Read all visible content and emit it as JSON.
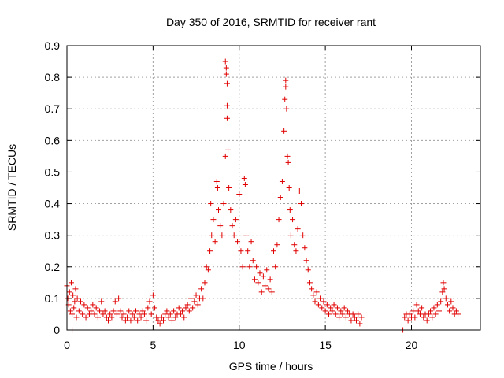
{
  "chart_data": {
    "type": "scatter",
    "title": "Day 350 of 2016, SRMTID for receiver rant",
    "xlabel": "GPS time / hours",
    "ylabel": "SRMTID / TECUs",
    "xlim": [
      0,
      24
    ],
    "ylim": [
      0,
      0.9
    ],
    "x_ticks": [
      0,
      5,
      10,
      15,
      20
    ],
    "x_tick_labels": [
      "0",
      "5",
      "10",
      "15",
      "20"
    ],
    "y_ticks": [
      0,
      0.1,
      0.2,
      0.3,
      0.4,
      0.5,
      0.6,
      0.7,
      0.8,
      0.9
    ],
    "y_tick_labels": [
      "0",
      "0.1",
      "0.2",
      "0.3",
      "0.4",
      "0.5",
      "0.6",
      "0.7",
      "0.8",
      "0.9"
    ],
    "grid": true,
    "marker": "+",
    "color": "#e00000",
    "series": [
      {
        "name": "SRMTID",
        "points": [
          [
            0.0,
            0.14
          ],
          [
            0.05,
            0.1
          ],
          [
            0.1,
            0.08
          ],
          [
            0.15,
            0.12
          ],
          [
            0.2,
            0.06
          ],
          [
            0.25,
            0.15
          ],
          [
            0.3,
            0.05
          ],
          [
            0.3,
            0.0
          ],
          [
            0.35,
            0.11
          ],
          [
            0.4,
            0.07
          ],
          [
            0.45,
            0.09
          ],
          [
            0.5,
            0.13
          ],
          [
            0.55,
            0.04
          ],
          [
            0.6,
            0.1
          ],
          [
            0.7,
            0.06
          ],
          [
            0.8,
            0.09
          ],
          [
            0.9,
            0.05
          ],
          [
            1.0,
            0.08
          ],
          [
            1.1,
            0.04
          ],
          [
            1.2,
            0.07
          ],
          [
            1.3,
            0.05
          ],
          [
            1.4,
            0.06
          ],
          [
            1.5,
            0.08
          ],
          [
            1.6,
            0.05
          ],
          [
            1.7,
            0.07
          ],
          [
            1.8,
            0.04
          ],
          [
            1.9,
            0.06
          ],
          [
            2.0,
            0.09
          ],
          [
            2.1,
            0.05
          ],
          [
            2.2,
            0.06
          ],
          [
            2.3,
            0.04
          ],
          [
            2.4,
            0.03
          ],
          [
            2.5,
            0.05
          ],
          [
            2.6,
            0.04
          ],
          [
            2.7,
            0.06
          ],
          [
            2.8,
            0.09
          ],
          [
            2.9,
            0.05
          ],
          [
            3.0,
            0.1
          ],
          [
            3.1,
            0.06
          ],
          [
            3.2,
            0.04
          ],
          [
            3.3,
            0.05
          ],
          [
            3.4,
            0.03
          ],
          [
            3.5,
            0.04
          ],
          [
            3.6,
            0.06
          ],
          [
            3.7,
            0.03
          ],
          [
            3.8,
            0.05
          ],
          [
            3.9,
            0.04
          ],
          [
            4.0,
            0.06
          ],
          [
            4.1,
            0.03
          ],
          [
            4.2,
            0.05
          ],
          [
            4.3,
            0.04
          ],
          [
            4.4,
            0.06
          ],
          [
            4.5,
            0.05
          ],
          [
            4.6,
            0.03
          ],
          [
            4.7,
            0.07
          ],
          [
            4.8,
            0.09
          ],
          [
            4.9,
            0.05
          ],
          [
            5.0,
            0.11
          ],
          [
            5.1,
            0.07
          ],
          [
            5.2,
            0.04
          ],
          [
            5.3,
            0.03
          ],
          [
            5.4,
            0.02
          ],
          [
            5.5,
            0.04
          ],
          [
            5.6,
            0.03
          ],
          [
            5.7,
            0.05
          ],
          [
            5.8,
            0.06
          ],
          [
            5.9,
            0.04
          ],
          [
            6.0,
            0.05
          ],
          [
            6.1,
            0.03
          ],
          [
            6.2,
            0.06
          ],
          [
            6.3,
            0.04
          ],
          [
            6.4,
            0.05
          ],
          [
            6.5,
            0.07
          ],
          [
            6.6,
            0.05
          ],
          [
            6.7,
            0.06
          ],
          [
            6.8,
            0.04
          ],
          [
            6.9,
            0.07
          ],
          [
            7.0,
            0.08
          ],
          [
            7.1,
            0.06
          ],
          [
            7.2,
            0.1
          ],
          [
            7.3,
            0.07
          ],
          [
            7.4,
            0.09
          ],
          [
            7.5,
            0.11
          ],
          [
            7.6,
            0.08
          ],
          [
            7.7,
            0.1
          ],
          [
            7.8,
            0.13
          ],
          [
            7.9,
            0.1
          ],
          [
            8.0,
            0.15
          ],
          [
            8.1,
            0.2
          ],
          [
            8.2,
            0.19
          ],
          [
            8.3,
            0.25
          ],
          [
            8.35,
            0.4
          ],
          [
            8.4,
            0.3
          ],
          [
            8.5,
            0.35
          ],
          [
            8.6,
            0.28
          ],
          [
            8.7,
            0.47
          ],
          [
            8.75,
            0.45
          ],
          [
            8.8,
            0.38
          ],
          [
            8.9,
            0.33
          ],
          [
            9.0,
            0.3
          ],
          [
            9.1,
            0.4
          ],
          [
            9.2,
            0.55
          ],
          [
            9.2,
            0.85
          ],
          [
            9.25,
            0.83
          ],
          [
            9.25,
            0.81
          ],
          [
            9.3,
            0.78
          ],
          [
            9.3,
            0.71
          ],
          [
            9.3,
            0.67
          ],
          [
            9.35,
            0.57
          ],
          [
            9.4,
            0.45
          ],
          [
            9.5,
            0.38
          ],
          [
            9.6,
            0.33
          ],
          [
            9.7,
            0.3
          ],
          [
            9.8,
            0.35
          ],
          [
            9.9,
            0.28
          ],
          [
            10.0,
            0.43
          ],
          [
            10.1,
            0.25
          ],
          [
            10.2,
            0.2
          ],
          [
            10.3,
            0.48
          ],
          [
            10.35,
            0.46
          ],
          [
            10.4,
            0.3
          ],
          [
            10.5,
            0.25
          ],
          [
            10.6,
            0.2
          ],
          [
            10.7,
            0.28
          ],
          [
            10.8,
            0.22
          ],
          [
            10.9,
            0.16
          ],
          [
            11.0,
            0.2
          ],
          [
            11.1,
            0.15
          ],
          [
            11.2,
            0.18
          ],
          [
            11.3,
            0.12
          ],
          [
            11.4,
            0.17
          ],
          [
            11.5,
            0.14
          ],
          [
            11.6,
            0.19
          ],
          [
            11.7,
            0.13
          ],
          [
            11.8,
            0.16
          ],
          [
            11.9,
            0.12
          ],
          [
            12.0,
            0.25
          ],
          [
            12.1,
            0.2
          ],
          [
            12.2,
            0.27
          ],
          [
            12.3,
            0.35
          ],
          [
            12.4,
            0.42
          ],
          [
            12.5,
            0.47
          ],
          [
            12.6,
            0.63
          ],
          [
            12.65,
            0.73
          ],
          [
            12.7,
            0.79
          ],
          [
            12.7,
            0.77
          ],
          [
            12.75,
            0.7
          ],
          [
            12.8,
            0.55
          ],
          [
            12.85,
            0.53
          ],
          [
            12.9,
            0.45
          ],
          [
            12.95,
            0.38
          ],
          [
            13.0,
            0.3
          ],
          [
            13.1,
            0.35
          ],
          [
            13.2,
            0.27
          ],
          [
            13.3,
            0.25
          ],
          [
            13.4,
            0.32
          ],
          [
            13.5,
            0.44
          ],
          [
            13.6,
            0.4
          ],
          [
            13.7,
            0.3
          ],
          [
            13.8,
            0.26
          ],
          [
            13.9,
            0.22
          ],
          [
            14.0,
            0.19
          ],
          [
            14.1,
            0.15
          ],
          [
            14.2,
            0.13
          ],
          [
            14.3,
            0.11
          ],
          [
            14.4,
            0.09
          ],
          [
            14.5,
            0.12
          ],
          [
            14.6,
            0.08
          ],
          [
            14.7,
            0.1
          ],
          [
            14.8,
            0.07
          ],
          [
            14.9,
            0.09
          ],
          [
            15.0,
            0.06
          ],
          [
            15.1,
            0.08
          ],
          [
            15.2,
            0.05
          ],
          [
            15.3,
            0.07
          ],
          [
            15.4,
            0.06
          ],
          [
            15.5,
            0.08
          ],
          [
            15.6,
            0.05
          ],
          [
            15.7,
            0.07
          ],
          [
            15.8,
            0.04
          ],
          [
            15.9,
            0.06
          ],
          [
            16.0,
            0.05
          ],
          [
            16.1,
            0.07
          ],
          [
            16.2,
            0.04
          ],
          [
            16.3,
            0.06
          ],
          [
            16.4,
            0.05
          ],
          [
            16.5,
            0.03
          ],
          [
            16.6,
            0.05
          ],
          [
            16.7,
            0.04
          ],
          [
            16.8,
            0.03
          ],
          [
            16.9,
            0.05
          ],
          [
            17.0,
            0.02
          ],
          [
            17.1,
            0.04
          ],
          [
            19.5,
            0.0
          ],
          [
            19.6,
            0.04
          ],
          [
            19.7,
            0.05
          ],
          [
            19.8,
            0.03
          ],
          [
            19.9,
            0.05
          ],
          [
            20.0,
            0.04
          ],
          [
            20.1,
            0.06
          ],
          [
            20.2,
            0.04
          ],
          [
            20.3,
            0.08
          ],
          [
            20.4,
            0.06
          ],
          [
            20.5,
            0.05
          ],
          [
            20.6,
            0.07
          ],
          [
            20.7,
            0.04
          ],
          [
            20.8,
            0.05
          ],
          [
            20.9,
            0.03
          ],
          [
            21.0,
            0.05
          ],
          [
            21.1,
            0.06
          ],
          [
            21.2,
            0.04
          ],
          [
            21.3,
            0.07
          ],
          [
            21.4,
            0.05
          ],
          [
            21.5,
            0.08
          ],
          [
            21.6,
            0.06
          ],
          [
            21.7,
            0.09
          ],
          [
            21.8,
            0.12
          ],
          [
            21.85,
            0.15
          ],
          [
            21.9,
            0.13
          ],
          [
            22.0,
            0.1
          ],
          [
            22.1,
            0.08
          ],
          [
            22.2,
            0.06
          ],
          [
            22.3,
            0.09
          ],
          [
            22.4,
            0.07
          ],
          [
            22.5,
            0.05
          ],
          [
            22.6,
            0.06
          ],
          [
            22.7,
            0.05
          ]
        ]
      }
    ]
  }
}
